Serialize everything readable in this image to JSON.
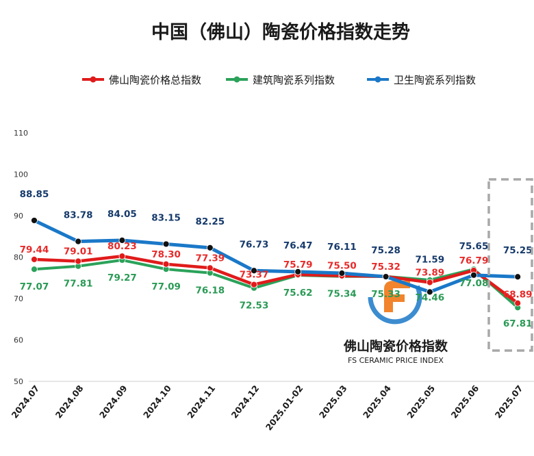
{
  "chart_data": {
    "type": "line",
    "title": "中国（佛山）陶瓷价格指数走势",
    "categories": [
      "2024.07",
      "2024.08",
      "2024.09",
      "2024.10",
      "2024.11",
      "2024.12",
      "2025.01-02",
      "2025.03",
      "2025.04",
      "2025.05",
      "2025.06",
      "2025.07"
    ],
    "ylim": [
      50,
      110
    ],
    "yticks": [
      50,
      60,
      70,
      80,
      90,
      100,
      110
    ],
    "legend_position": "top",
    "grid": false,
    "series": [
      {
        "name": "佛山陶瓷价格总指数",
        "color": "#e01b1b",
        "label_color": "#e82a2a",
        "values": [
          79.44,
          79.01,
          80.23,
          78.3,
          77.39,
          73.37,
          75.79,
          75.5,
          75.32,
          73.89,
          76.79,
          68.89
        ],
        "labels": [
          "79.44",
          "79.01",
          "80.23",
          "78.30",
          "77.39",
          "73.37",
          "75.79",
          "75.50",
          "75.32",
          "73.89",
          "76.79",
          "68.89"
        ]
      },
      {
        "name": "建筑陶瓷系列指数",
        "color": "#2ba25a",
        "label_color": "#2a9a55",
        "values": [
          77.07,
          77.81,
          79.27,
          77.09,
          76.18,
          72.53,
          75.62,
          75.34,
          75.33,
          74.46,
          77.08,
          67.81
        ],
        "labels": [
          "77.07",
          "77.81",
          "79.27",
          "77.09",
          "76.18",
          "72.53",
          "75.62",
          "75.34",
          "75.33",
          "74.46",
          "77.08",
          "67.81"
        ]
      },
      {
        "name": "卫生陶瓷系列指数",
        "color": "#1a78c8",
        "label_color": "#163a6b",
        "values": [
          88.85,
          83.78,
          84.05,
          83.15,
          82.25,
          76.73,
          76.47,
          76.11,
          75.28,
          71.59,
          75.65,
          75.25
        ],
        "labels": [
          "88.85",
          "83.78",
          "84.05",
          "83.15",
          "82.25",
          "76.73",
          "76.47",
          "76.11",
          "75.28",
          "71.59",
          "75.65",
          "75.25"
        ]
      }
    ],
    "watermark": {
      "title": "佛山陶瓷价格指数",
      "subtitle": "FS CERAMIC PRICE INDEX",
      "accent": "#f07a1a",
      "ring": "#1a78c8"
    },
    "highlight_category": "2025.07"
  }
}
